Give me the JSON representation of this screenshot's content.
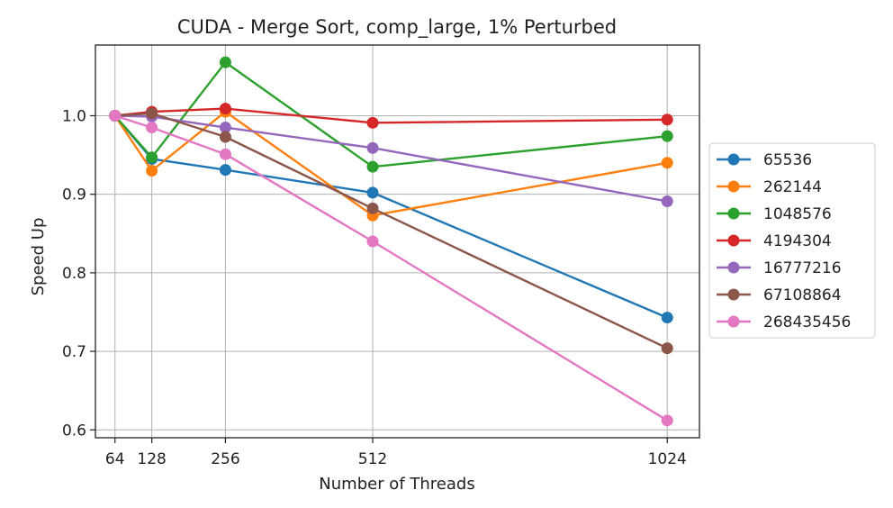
{
  "chart_data": {
    "type": "line",
    "title": "CUDA - Merge Sort, comp_large, 1% Perturbed",
    "xlabel": "Number of Threads",
    "ylabel": "Speed Up",
    "x": [
      64,
      128,
      256,
      512,
      1024
    ],
    "x_tick_labels": [
      "64",
      "128",
      "256",
      "512",
      "1024"
    ],
    "y_ticks": [
      0.6,
      0.7,
      0.8,
      0.9,
      1.0
    ],
    "y_tick_labels": [
      "0.6",
      "0.7",
      "0.8",
      "0.9",
      "1.0"
    ],
    "xlim": [
      30,
      1080
    ],
    "ylim": [
      0.59,
      1.09
    ],
    "grid": true,
    "legend_position": "center-right-outside",
    "series": [
      {
        "name": "65536",
        "color": "#1f77b4",
        "values": [
          1.0,
          0.945,
          0.931,
          0.902,
          0.743
        ]
      },
      {
        "name": "262144",
        "color": "#ff7f0e",
        "values": [
          1.0,
          0.93,
          1.005,
          0.873,
          0.94
        ]
      },
      {
        "name": "1048576",
        "color": "#2ca02c",
        "values": [
          1.0,
          0.947,
          1.068,
          0.935,
          0.974
        ]
      },
      {
        "name": "4194304",
        "color": "#d62728",
        "values": [
          1.0,
          1.005,
          1.009,
          0.991,
          0.995
        ]
      },
      {
        "name": "16777216",
        "color": "#9467bd",
        "values": [
          1.0,
          0.999,
          0.985,
          0.959,
          0.891
        ]
      },
      {
        "name": "67108864",
        "color": "#8c564b",
        "values": [
          1.0,
          1.003,
          0.973,
          0.882,
          0.704
        ]
      },
      {
        "name": "268435456",
        "color": "#e377c2",
        "values": [
          1.0,
          0.985,
          0.951,
          0.84,
          0.612
        ]
      }
    ]
  }
}
